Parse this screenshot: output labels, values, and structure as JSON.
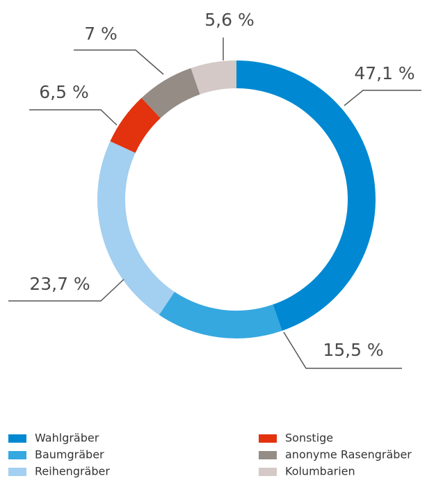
{
  "chart_data": {
    "type": "donut",
    "categories": [
      "Wahlgräber",
      "Baumgräber",
      "Reihengräber",
      "Sonstige",
      "anonyme Rasengräber",
      "Kolumbarien"
    ],
    "values": [
      47.1,
      15.5,
      23.7,
      6.5,
      7,
      5.6
    ],
    "value_labels": [
      "47,1 %",
      "15,5 %",
      "23,7 %",
      "6,5 %",
      "7 %",
      "5,6 %"
    ],
    "colors": [
      "#0089d2",
      "#35a8e0",
      "#a3cff0",
      "#e2320e",
      "#958c86",
      "#d4c9c6"
    ]
  }
}
